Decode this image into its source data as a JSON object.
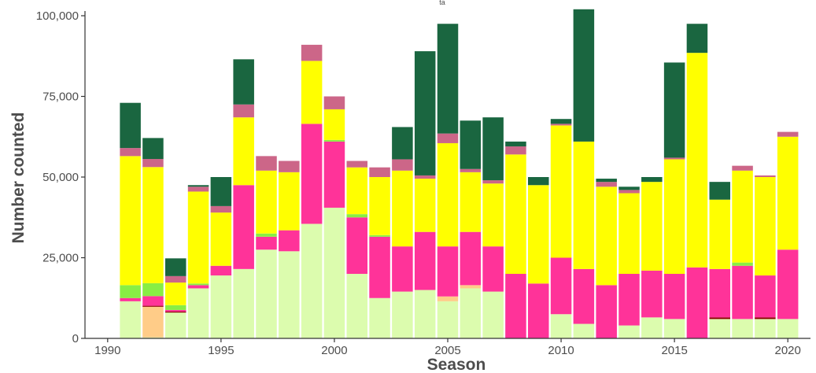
{
  "chart_data": {
    "type": "bar",
    "stacked": true,
    "top_fragment": "ta",
    "xlabel": "Season",
    "ylabel": "Number counted",
    "xlim": [
      1989,
      2021
    ],
    "ylim": [
      0,
      100000
    ],
    "x_ticks": [
      1990,
      1995,
      2000,
      2005,
      2010,
      2015,
      2020
    ],
    "x_tick_labels": [
      "1990",
      "1995",
      "2000",
      "2005",
      "2010",
      "2015",
      "2020"
    ],
    "y_ticks": [
      0,
      25000,
      50000,
      75000,
      100000
    ],
    "y_tick_labels": [
      "0",
      "25,000",
      "50,000",
      "75,000",
      "100,000"
    ],
    "grid": false,
    "legend": "none",
    "colors": {
      "seg_light_green": "#dcfcae",
      "seg_orange": "#ffcc88",
      "seg_dark_red": "#8b0000",
      "seg_pink": "#ff3399",
      "seg_bright_green": "#88ee44",
      "seg_yellow": "#ffff00",
      "seg_mauve": "#cc6688",
      "seg_dark_green": "#1a6640",
      "axis": "#333333",
      "text": "#4d4d4d"
    },
    "series_order": [
      "seg_light_green",
      "seg_orange",
      "seg_dark_red",
      "seg_pink",
      "seg_bright_green",
      "seg_yellow",
      "seg_mauve",
      "seg_dark_green"
    ],
    "x": [
      1991,
      1992,
      1993,
      1994,
      1995,
      1996,
      1997,
      1998,
      1999,
      2000,
      2001,
      2002,
      2003,
      2004,
      2005,
      2006,
      2007,
      2008,
      2009,
      2010,
      2011,
      2012,
      2013,
      2014,
      2015,
      2016,
      2017,
      2018,
      2019,
      2020
    ],
    "series": [
      {
        "key": "seg_light_green",
        "values": [
          11500,
          300,
          8000,
          15500,
          19500,
          21500,
          27500,
          27000,
          35500,
          40500,
          20000,
          12500,
          14500,
          15000,
          11500,
          15500,
          14500,
          0,
          0,
          7500,
          4500,
          0,
          4000,
          6500,
          6000,
          0,
          6000,
          6000,
          6000,
          6000
        ]
      },
      {
        "key": "seg_orange",
        "values": [
          0,
          9500,
          0,
          0,
          0,
          0,
          0,
          0,
          0,
          0,
          0,
          0,
          0,
          0,
          1500,
          1000,
          0,
          0,
          0,
          0,
          0,
          0,
          0,
          0,
          0,
          0,
          0,
          0,
          0,
          0
        ]
      },
      {
        "key": "seg_dark_red",
        "values": [
          0,
          300,
          300,
          0,
          0,
          0,
          0,
          0,
          0,
          0,
          0,
          0,
          0,
          0,
          0,
          0,
          0,
          0,
          0,
          0,
          0,
          0,
          0,
          0,
          0,
          0,
          500,
          0,
          500,
          0
        ]
      },
      {
        "key": "seg_pink",
        "values": [
          1000,
          3000,
          500,
          1000,
          3000,
          26000,
          4000,
          6500,
          31000,
          20500,
          17500,
          19000,
          14000,
          18000,
          15500,
          16500,
          14000,
          20000,
          17000,
          17500,
          17000,
          16500,
          16000,
          14500,
          14000,
          22000,
          15000,
          16500,
          13000,
          21500
        ]
      },
      {
        "key": "seg_bright_green",
        "values": [
          4000,
          4000,
          1500,
          500,
          0,
          0,
          1000,
          0,
          0,
          500,
          1000,
          500,
          0,
          0,
          0,
          0,
          0,
          0,
          0,
          0,
          0,
          0,
          0,
          0,
          0,
          0,
          0,
          1000,
          0,
          0
        ]
      },
      {
        "key": "seg_yellow",
        "values": [
          40000,
          36000,
          7000,
          28500,
          16500,
          21000,
          19500,
          18000,
          19500,
          9500,
          14500,
          18000,
          23500,
          16500,
          32000,
          18500,
          19500,
          37000,
          30500,
          41000,
          39500,
          30500,
          25000,
          27500,
          35500,
          66500,
          21500,
          28500,
          30500,
          35000
        ]
      },
      {
        "key": "seg_mauve",
        "values": [
          2500,
          2500,
          2000,
          1500,
          2000,
          4000,
          4500,
          3500,
          5000,
          4000,
          2000,
          3000,
          3500,
          1000,
          3000,
          1000,
          1000,
          2500,
          0,
          500,
          0,
          1500,
          1000,
          0,
          500,
          0,
          0,
          1500,
          500,
          1500
        ]
      },
      {
        "key": "seg_dark_green",
        "values": [
          14000,
          6500,
          5500,
          500,
          9000,
          14000,
          0,
          0,
          0,
          0,
          0,
          0,
          10000,
          38500,
          34000,
          15000,
          19500,
          1500,
          2500,
          1500,
          41000,
          1000,
          1000,
          1500,
          29500,
          9000,
          5500,
          0,
          0,
          0
        ]
      }
    ]
  }
}
